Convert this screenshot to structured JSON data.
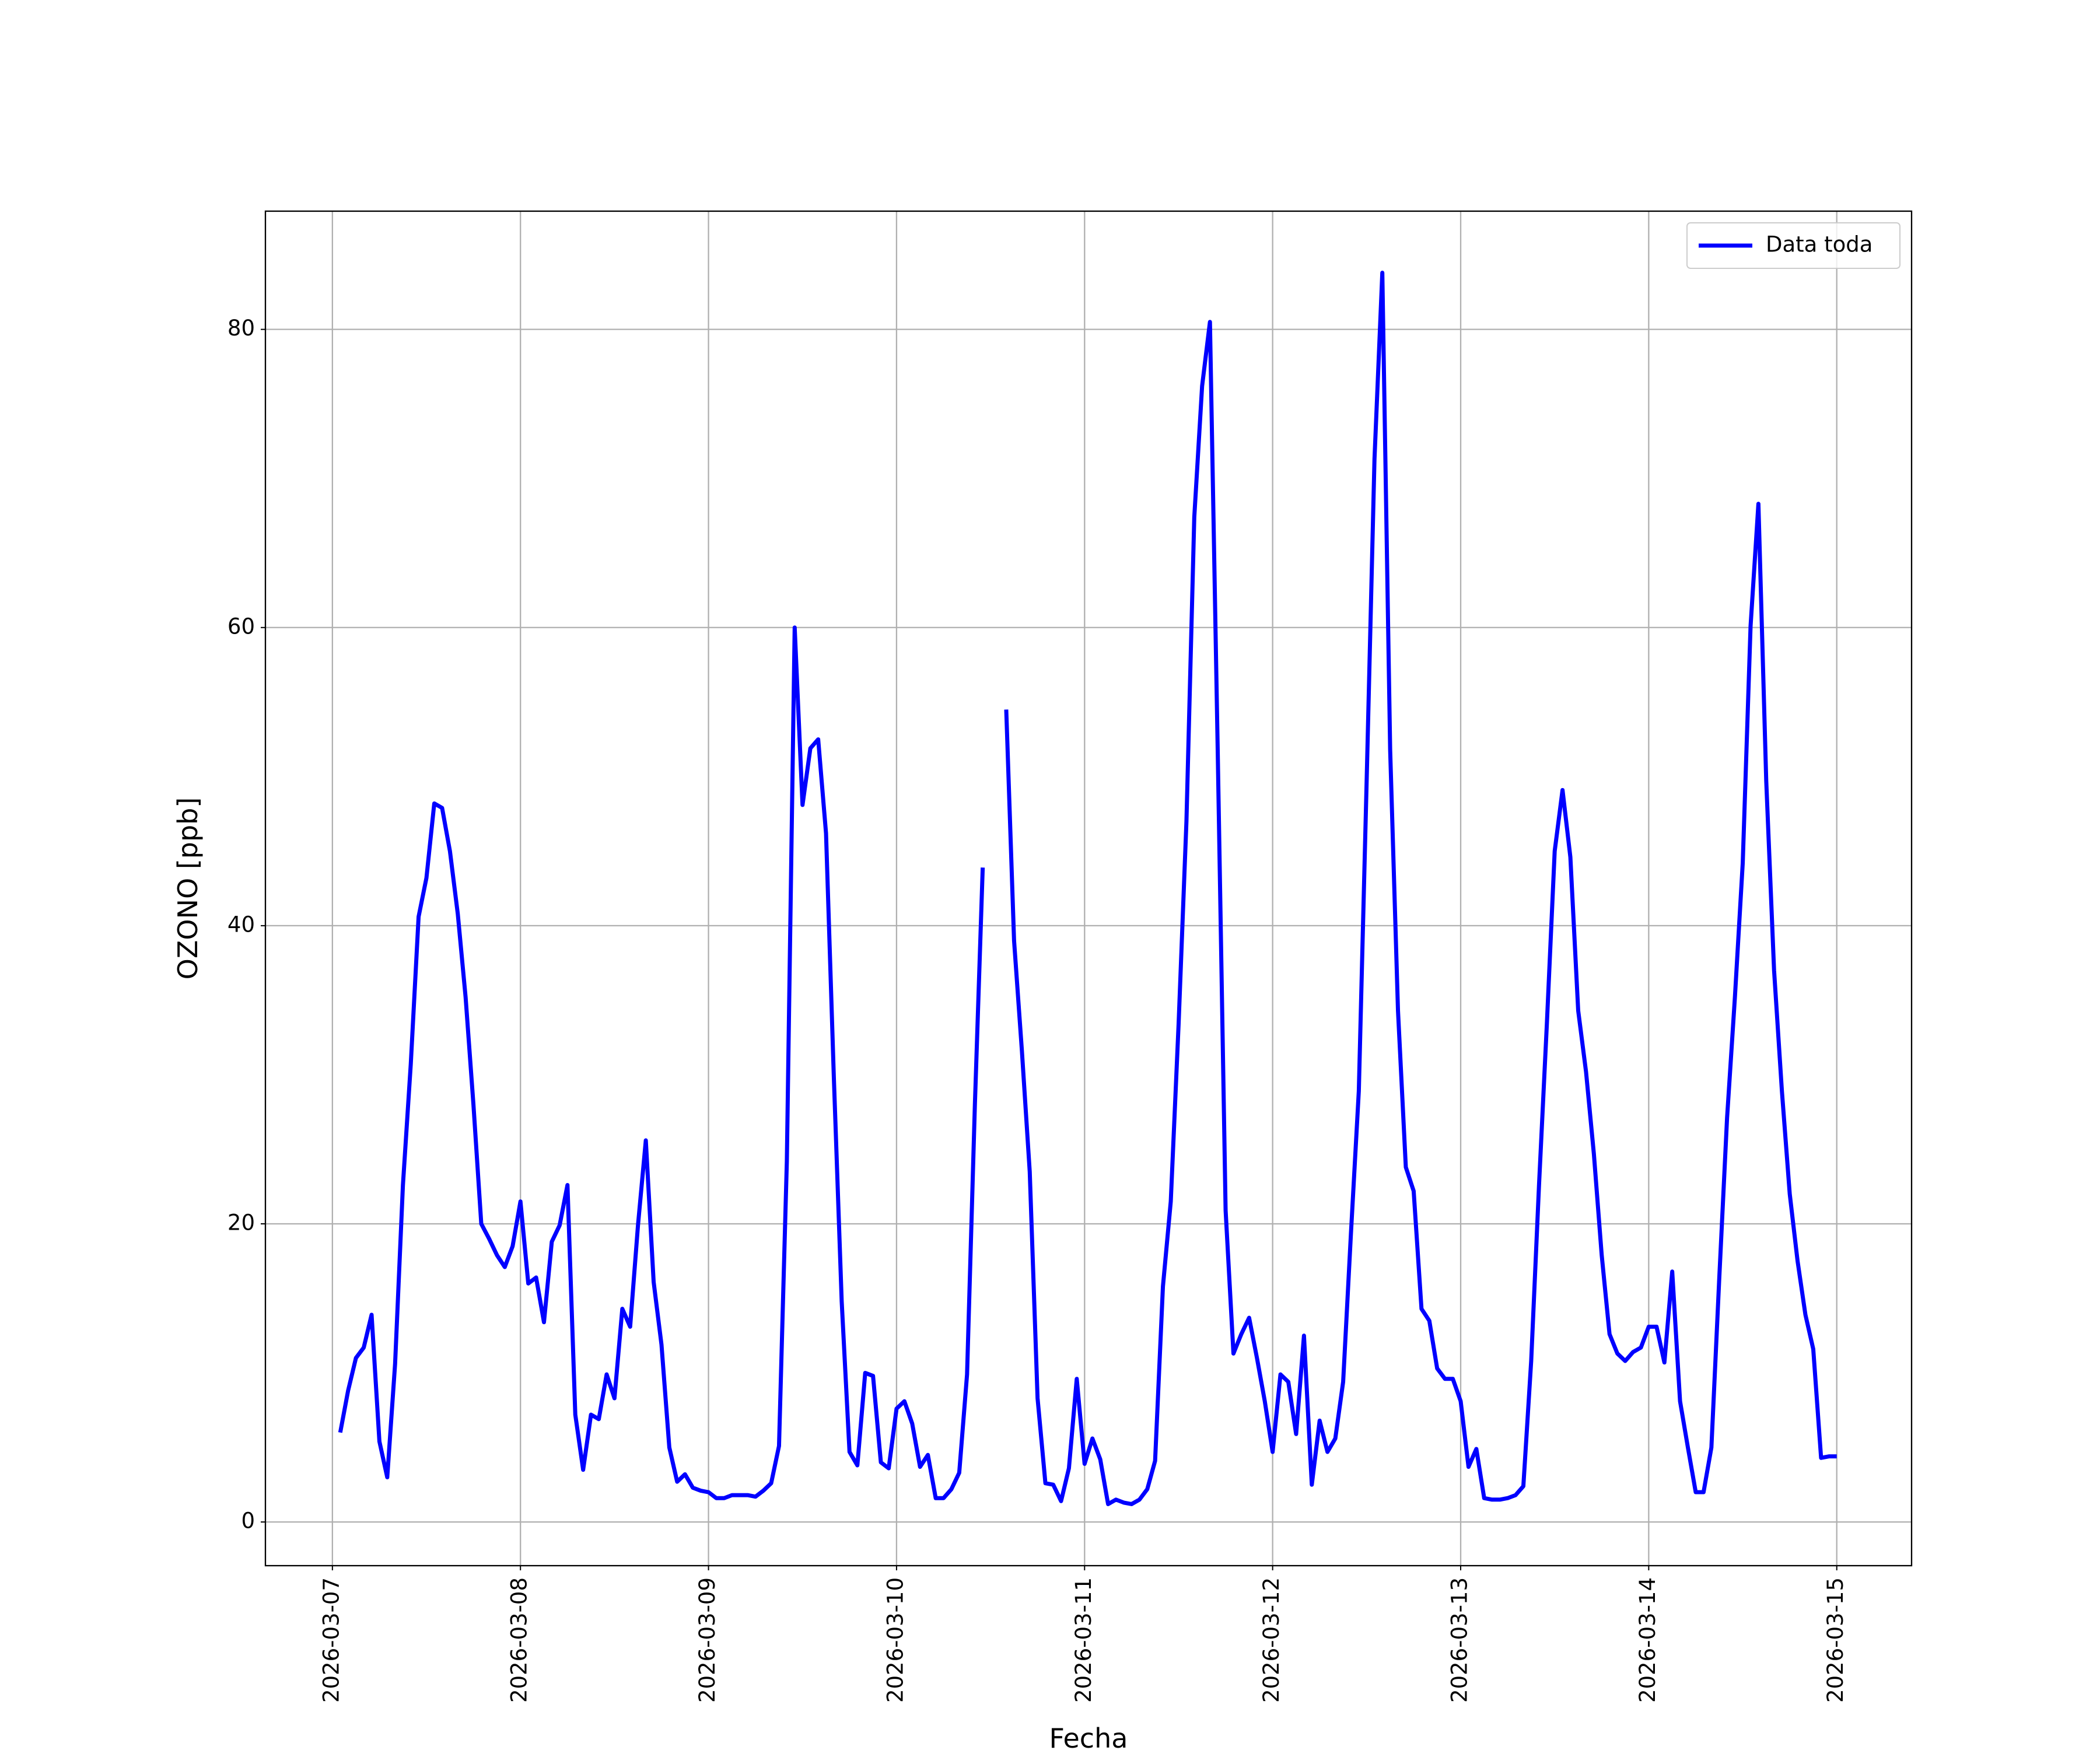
{
  "chart_data": {
    "type": "line",
    "xlabel": "Fecha",
    "ylabel": "OZONO [ppb]",
    "x": [
      "2026-03-07 01:00",
      "2026-03-07 02:00",
      "2026-03-07 03:00",
      "2026-03-07 04:00",
      "2026-03-07 05:00",
      "2026-03-07 06:00",
      "2026-03-07 07:00",
      "2026-03-07 08:00",
      "2026-03-07 09:00",
      "2026-03-07 10:00",
      "2026-03-07 11:00",
      "2026-03-07 12:00",
      "2026-03-07 13:00",
      "2026-03-07 14:00",
      "2026-03-07 15:00",
      "2026-03-07 16:00",
      "2026-03-07 17:00",
      "2026-03-07 18:00",
      "2026-03-07 19:00",
      "2026-03-07 20:00",
      "2026-03-07 21:00",
      "2026-03-07 22:00",
      "2026-03-07 23:00",
      "2026-03-08 00:00",
      "2026-03-08 01:00",
      "2026-03-08 02:00",
      "2026-03-08 03:00",
      "2026-03-08 04:00",
      "2026-03-08 05:00",
      "2026-03-08 06:00",
      "2026-03-08 07:00",
      "2026-03-08 08:00",
      "2026-03-08 09:00",
      "2026-03-08 10:00",
      "2026-03-08 11:00",
      "2026-03-08 12:00",
      "2026-03-08 13:00",
      "2026-03-08 14:00",
      "2026-03-08 15:00",
      "2026-03-08 16:00",
      "2026-03-08 17:00",
      "2026-03-08 18:00",
      "2026-03-08 19:00",
      "2026-03-08 20:00",
      "2026-03-08 21:00",
      "2026-03-08 22:00",
      "2026-03-08 23:00",
      "2026-03-09 00:00",
      "2026-03-09 01:00",
      "2026-03-09 02:00",
      "2026-03-09 03:00",
      "2026-03-09 04:00",
      "2026-03-09 05:00",
      "2026-03-09 06:00",
      "2026-03-09 07:00",
      "2026-03-09 08:00",
      "2026-03-09 09:00",
      "2026-03-09 10:00",
      "2026-03-09 11:00",
      "2026-03-09 12:00",
      "2026-03-09 13:00",
      "2026-03-09 14:00",
      "2026-03-09 15:00",
      "2026-03-09 16:00",
      "2026-03-09 17:00",
      "2026-03-09 18:00",
      "2026-03-09 19:00",
      "2026-03-09 20:00",
      "2026-03-09 21:00",
      "2026-03-09 22:00",
      "2026-03-09 23:00",
      "2026-03-10 00:00",
      "2026-03-10 01:00",
      "2026-03-10 02:00",
      "2026-03-10 03:00",
      "2026-03-10 04:00",
      "2026-03-10 05:00",
      "2026-03-10 06:00",
      "2026-03-10 07:00",
      "2026-03-10 08:00",
      "2026-03-10 09:00",
      "2026-03-10 10:00",
      "2026-03-10 11:00",
      "2026-03-10 12:00",
      "2026-03-10 13:00",
      "2026-03-10 14:00",
      "2026-03-10 15:00",
      "2026-03-10 16:00",
      "2026-03-10 17:00",
      "2026-03-10 18:00",
      "2026-03-10 19:00",
      "2026-03-10 20:00",
      "2026-03-10 21:00",
      "2026-03-10 22:00",
      "2026-03-10 23:00",
      "2026-03-11 00:00",
      "2026-03-11 01:00",
      "2026-03-11 02:00",
      "2026-03-11 03:00",
      "2026-03-11 04:00",
      "2026-03-11 05:00",
      "2026-03-11 06:00",
      "2026-03-11 07:00",
      "2026-03-11 08:00",
      "2026-03-11 09:00",
      "2026-03-11 10:00",
      "2026-03-11 11:00",
      "2026-03-11 12:00",
      "2026-03-11 13:00",
      "2026-03-11 14:00",
      "2026-03-11 15:00",
      "2026-03-11 16:00",
      "2026-03-11 17:00",
      "2026-03-11 18:00",
      "2026-03-11 19:00",
      "2026-03-11 20:00",
      "2026-03-11 21:00",
      "2026-03-11 22:00",
      "2026-03-11 23:00",
      "2026-03-12 00:00",
      "2026-03-12 01:00",
      "2026-03-12 02:00",
      "2026-03-12 03:00",
      "2026-03-12 04:00",
      "2026-03-12 05:00",
      "2026-03-12 06:00",
      "2026-03-12 07:00",
      "2026-03-12 08:00",
      "2026-03-12 09:00",
      "2026-03-12 10:00",
      "2026-03-12 11:00",
      "2026-03-12 12:00",
      "2026-03-12 13:00",
      "2026-03-12 14:00",
      "2026-03-12 15:00",
      "2026-03-12 16:00",
      "2026-03-12 17:00",
      "2026-03-12 18:00",
      "2026-03-12 19:00",
      "2026-03-12 20:00",
      "2026-03-12 21:00",
      "2026-03-12 22:00",
      "2026-03-12 23:00",
      "2026-03-13 00:00",
      "2026-03-13 01:00",
      "2026-03-13 02:00",
      "2026-03-13 03:00",
      "2026-03-13 04:00",
      "2026-03-13 05:00",
      "2026-03-13 06:00",
      "2026-03-13 07:00",
      "2026-03-13 08:00",
      "2026-03-13 09:00",
      "2026-03-13 10:00",
      "2026-03-13 11:00",
      "2026-03-13 12:00",
      "2026-03-13 13:00",
      "2026-03-13 14:00",
      "2026-03-13 15:00",
      "2026-03-13 16:00",
      "2026-03-13 17:00",
      "2026-03-13 18:00",
      "2026-03-13 19:00",
      "2026-03-13 20:00",
      "2026-03-13 21:00",
      "2026-03-13 22:00",
      "2026-03-13 23:00",
      "2026-03-14 00:00",
      "2026-03-14 01:00",
      "2026-03-14 02:00",
      "2026-03-14 03:00",
      "2026-03-14 04:00",
      "2026-03-14 05:00",
      "2026-03-14 06:00",
      "2026-03-14 07:00",
      "2026-03-14 08:00",
      "2026-03-14 09:00",
      "2026-03-14 10:00",
      "2026-03-14 11:00",
      "2026-03-14 12:00",
      "2026-03-14 13:00",
      "2026-03-14 14:00",
      "2026-03-14 15:00",
      "2026-03-14 16:00",
      "2026-03-14 17:00",
      "2026-03-14 18:00",
      "2026-03-14 19:00",
      "2026-03-14 20:00",
      "2026-03-14 21:00",
      "2026-03-14 22:00",
      "2026-03-14 23:00",
      "2026-03-15 00:00"
    ],
    "series": [
      {
        "name": "Data toda",
        "color": "#0000ff",
        "values": [
          6.0,
          8.8,
          11.0,
          11.7,
          13.9,
          5.4,
          3.0,
          10.6,
          22.6,
          30.7,
          40.6,
          43.2,
          48.2,
          47.9,
          45.0,
          40.8,
          35.2,
          28.0,
          20.0,
          19.0,
          17.9,
          17.1,
          18.5,
          21.5,
          16.0,
          16.4,
          13.4,
          18.8,
          19.9,
          22.6,
          7.2,
          3.5,
          7.2,
          6.9,
          9.9,
          8.3,
          14.3,
          13.1,
          19.9,
          25.6,
          16.1,
          11.9,
          5.0,
          2.7,
          3.2,
          2.3,
          2.1,
          2.0,
          1.6,
          1.6,
          1.8,
          1.8,
          1.8,
          1.7,
          2.1,
          2.6,
          5.1,
          24.2,
          60.0,
          48.1,
          51.9,
          52.5,
          46.2,
          29.8,
          14.8,
          4.7,
          3.8,
          10.0,
          9.8,
          4.0,
          3.6,
          7.6,
          8.1,
          6.6,
          3.7,
          4.5,
          1.6,
          1.6,
          2.2,
          3.3,
          9.9,
          28.0,
          43.9,
          null,
          null,
          54.5,
          39.0,
          31.6,
          23.5,
          8.3,
          2.6,
          2.5,
          1.4,
          3.6,
          9.6,
          3.9,
          5.6,
          4.2,
          1.2,
          1.5,
          1.3,
          1.2,
          1.5,
          2.2,
          4.1,
          15.8,
          21.5,
          33.4,
          47.0,
          67.4,
          76.2,
          80.5,
          51.5,
          20.9,
          11.3,
          12.6,
          13.7,
          11.0,
          8.1,
          4.7,
          9.9,
          9.4,
          5.9,
          12.5,
          2.5,
          6.8,
          4.7,
          5.6,
          9.4,
          19.4,
          28.9,
          49.7,
          71.3,
          83.8,
          51.8,
          34.3,
          23.8,
          22.2,
          14.3,
          13.5,
          10.3,
          9.6,
          9.6,
          8.1,
          3.7,
          4.9,
          1.6,
          1.5,
          1.5,
          1.6,
          1.8,
          2.4,
          10.8,
          22.6,
          33.4,
          45.0,
          49.1,
          44.6,
          34.3,
          30.2,
          24.7,
          17.9,
          12.6,
          11.3,
          10.8,
          11.4,
          11.7,
          13.1,
          13.1,
          10.7,
          16.8,
          8.1,
          5.0,
          2.0,
          2.0,
          5.0,
          16.3,
          27.1,
          35.2,
          44.2,
          60.1,
          68.3,
          49.7,
          37.0,
          28.9,
          22.0,
          17.5,
          13.9,
          11.6,
          4.3,
          4.4,
          4.4
        ]
      }
    ],
    "xlim": [
      "2026-03-06 15:27",
      "2026-03-15 09:33"
    ],
    "xticks": [
      "2026-03-07",
      "2026-03-08",
      "2026-03-09",
      "2026-03-10",
      "2026-03-11",
      "2026-03-12",
      "2026-03-13",
      "2026-03-14",
      "2026-03-15"
    ],
    "ylim": [
      -2.93,
      87.93
    ],
    "yticks": [
      0,
      20,
      40,
      60,
      80
    ],
    "grid": true,
    "legend": "upper right"
  }
}
